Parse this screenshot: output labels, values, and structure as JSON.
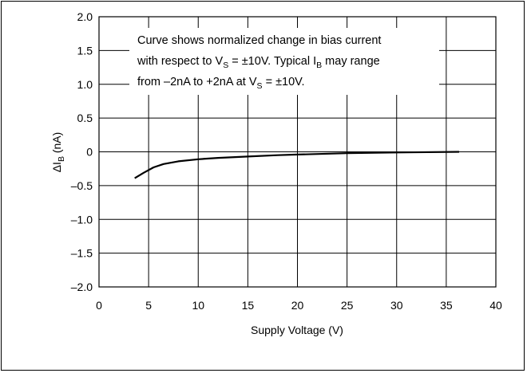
{
  "chart_data": {
    "type": "line",
    "title": "",
    "xlabel": "Supply Voltage (V)",
    "ylabel_main": "ΔI",
    "ylabel_sub": "B",
    "ylabel_unit": " (nA)",
    "xlim": [
      0,
      40
    ],
    "ylim": [
      -2.0,
      2.0
    ],
    "grid": true,
    "x_ticks": [
      0,
      5,
      10,
      15,
      20,
      25,
      30,
      35,
      40
    ],
    "x_tick_labels": [
      "0",
      "5",
      "10",
      "15",
      "20",
      "25",
      "30",
      "35",
      "40"
    ],
    "y_ticks": [
      2.0,
      1.5,
      1.0,
      0.5,
      0,
      -0.5,
      -1.0,
      -1.5,
      -2.0
    ],
    "y_tick_labels": [
      "2.0",
      "1.5",
      "1.0",
      "0.5",
      "0",
      "–0.5",
      "–1.0",
      "–1.5",
      "–2.0"
    ],
    "series": [
      {
        "x": [
          3.6,
          4.5,
          5.5,
          6.5,
          8,
          10,
          12,
          15,
          18,
          20,
          25,
          30,
          36.3
        ],
        "y": [
          -0.39,
          -0.31,
          -0.23,
          -0.18,
          -0.14,
          -0.11,
          -0.09,
          -0.07,
          -0.05,
          -0.04,
          -0.02,
          -0.01,
          0.0
        ]
      }
    ],
    "annotation": {
      "line1": "Curve shows normalized change in bias current",
      "line2_a": "with respect to V",
      "line2_sub1": "S",
      "line2_b": " = ±10V. Typical I",
      "line2_sub2": "B",
      "line2_c": " may range",
      "line3_a": "from –2nA to +2nA at V",
      "line3_sub": "S",
      "line3_b": " = ±10V."
    }
  }
}
